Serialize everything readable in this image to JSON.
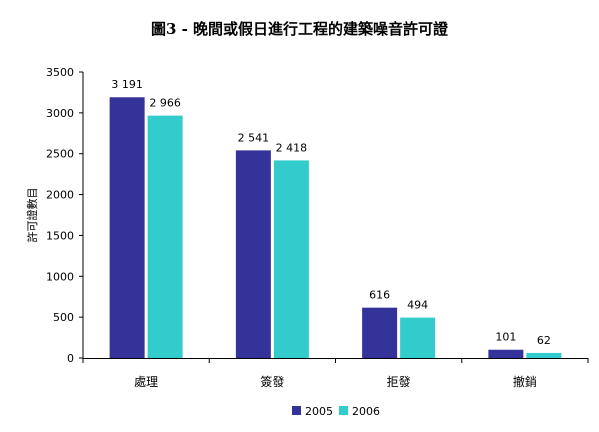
{
  "chart_data": {
    "type": "bar",
    "title": "圖3 - 晚間或假日進行工程的建築噪音許可證",
    "ylabel": "許可證數目",
    "xlabel": "",
    "categories": [
      "處理",
      "簽發",
      "拒發",
      "撤銷"
    ],
    "series": [
      {
        "name": "2005",
        "values": [
          3191,
          2541,
          616,
          101
        ],
        "labels": [
          "3 191",
          "2 541",
          "616",
          "101"
        ],
        "color": "#333399"
      },
      {
        "name": "2006",
        "values": [
          2966,
          2418,
          494,
          62
        ],
        "labels": [
          "2 966",
          "2 418",
          "494",
          "62"
        ],
        "color": "#33CCCC"
      }
    ],
    "ylim": [
      0,
      3500
    ],
    "yticks": [
      "0",
      "500",
      "1000",
      "1500",
      "2000",
      "2500",
      "3000",
      "3500"
    ],
    "grid": false,
    "legend": "bottom"
  }
}
